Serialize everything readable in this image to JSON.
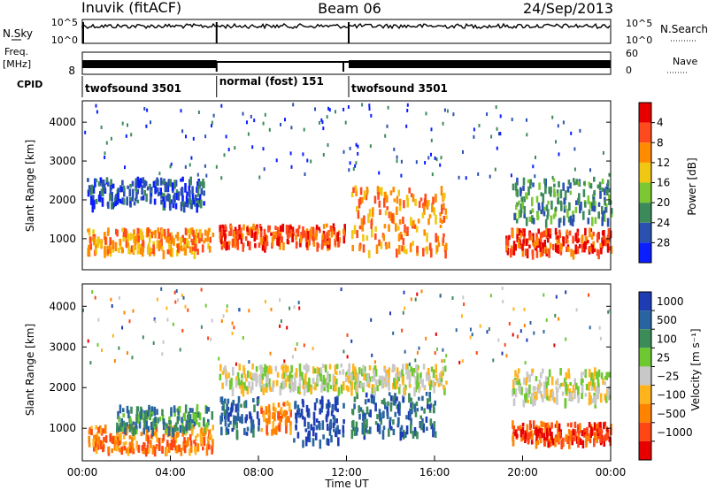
{
  "header": {
    "title": "Inuvik (fitACF)",
    "beam": "Beam 06",
    "date": "24/Sep/2013"
  },
  "top_panels": {
    "nsky_label": "N.Sky",
    "nsky_ticks": [
      "10^5",
      "10^0"
    ],
    "nsearch_label": "N.Search",
    "nsearch_ticks": [
      "10^5",
      "10^0"
    ],
    "freq_label": "Freq.",
    "freq_unit": "[MHz]",
    "freq_tick": "8",
    "nave_label": "Nave",
    "nave_ticks": [
      "60",
      "0"
    ],
    "cpid_label": "CPID",
    "cpid_segments": [
      {
        "label": "twofsound 3501",
        "start_hour": 0,
        "end_hour": 6.1
      },
      {
        "label": "normal (fost) 151",
        "start_hour": 6.1,
        "end_hour": 12.1
      },
      {
        "label": "twofsound 3501",
        "start_hour": 12.1,
        "end_hour": 24
      }
    ]
  },
  "chart_data": [
    {
      "type": "heatmap",
      "title": "",
      "ylabel": "Slant Range [km]",
      "xlabel": "",
      "ylim": [
        200,
        4550
      ],
      "yticks": [
        "1000",
        "2000",
        "3000",
        "4000"
      ],
      "colorbar": {
        "label": "Power [dB]",
        "ticks": [
          "4",
          "8",
          "12",
          "16",
          "20",
          "24",
          "28"
        ],
        "colors": [
          "#0a1eff",
          "#2a50b0",
          "#3c8a5a",
          "#7cc832",
          "#f0c814",
          "#ff8c00",
          "#ff4a1e",
          "#e60000"
        ]
      },
      "bands": [
        {
          "start_hour": 0.2,
          "end_hour": 5.9,
          "low_km": 700,
          "high_km": 1300,
          "level": 5
        },
        {
          "start_hour": 6.2,
          "end_hour": 11.9,
          "low_km": 850,
          "high_km": 1400,
          "level": 6
        },
        {
          "start_hour": 12.2,
          "end_hour": 16.5,
          "low_km": 700,
          "high_km": 2400,
          "level": 5
        },
        {
          "start_hour": 19.2,
          "end_hour": 24,
          "low_km": 700,
          "high_km": 1300,
          "level": 6
        },
        {
          "start_hour": 0.2,
          "end_hour": 5.5,
          "low_km": 1900,
          "high_km": 2600,
          "level": 1
        },
        {
          "start_hour": 19.5,
          "end_hour": 24,
          "low_km": 1500,
          "high_km": 2600,
          "level": 2
        }
      ]
    },
    {
      "type": "heatmap",
      "title": "",
      "ylabel": "Slant Range [km]",
      "xlabel": "Time UT",
      "ylim": [
        200,
        4550
      ],
      "yticks": [
        "1000",
        "2000",
        "3000",
        "4000"
      ],
      "xticks": [
        "00:00",
        "04:00",
        "08:00",
        "12:00",
        "16:00",
        "20:00",
        "00:00"
      ],
      "colorbar": {
        "label": "Velocity [m s⁻¹]",
        "ticks": [
          "1000",
          "500",
          "100",
          "25",
          "−25",
          "−100",
          "−500",
          "−1000"
        ],
        "colors": [
          "#1e3cb4",
          "#2a64a0",
          "#3c8c5a",
          "#6ec832",
          "#c8c8c8",
          "#ffb41e",
          "#ff8200",
          "#ff4614",
          "#e60000"
        ]
      },
      "bands": [
        {
          "start_hour": 0.2,
          "end_hour": 5.9,
          "low_km": 500,
          "high_km": 1100,
          "level": 6
        },
        {
          "start_hour": 1.5,
          "end_hour": 5.9,
          "low_km": 1000,
          "high_km": 1600,
          "level": 2
        },
        {
          "start_hour": 6.2,
          "end_hour": 8.0,
          "low_km": 900,
          "high_km": 1800,
          "level": 1
        },
        {
          "start_hour": 8.0,
          "end_hour": 9.5,
          "low_km": 900,
          "high_km": 1700,
          "level": 6
        },
        {
          "start_hour": 9.5,
          "end_hour": 11.9,
          "low_km": 700,
          "high_km": 1800,
          "level": 0
        },
        {
          "start_hour": 12.2,
          "end_hour": 16.0,
          "low_km": 900,
          "high_km": 1900,
          "level": 1
        },
        {
          "start_hour": 6.2,
          "end_hour": 16.5,
          "low_km": 2000,
          "high_km": 2600,
          "level": 4
        },
        {
          "start_hour": 19.5,
          "end_hour": 24,
          "low_km": 700,
          "high_km": 1200,
          "level": 7
        },
        {
          "start_hour": 19.5,
          "end_hour": 24,
          "low_km": 1700,
          "high_km": 2500,
          "level": 4
        }
      ]
    }
  ]
}
